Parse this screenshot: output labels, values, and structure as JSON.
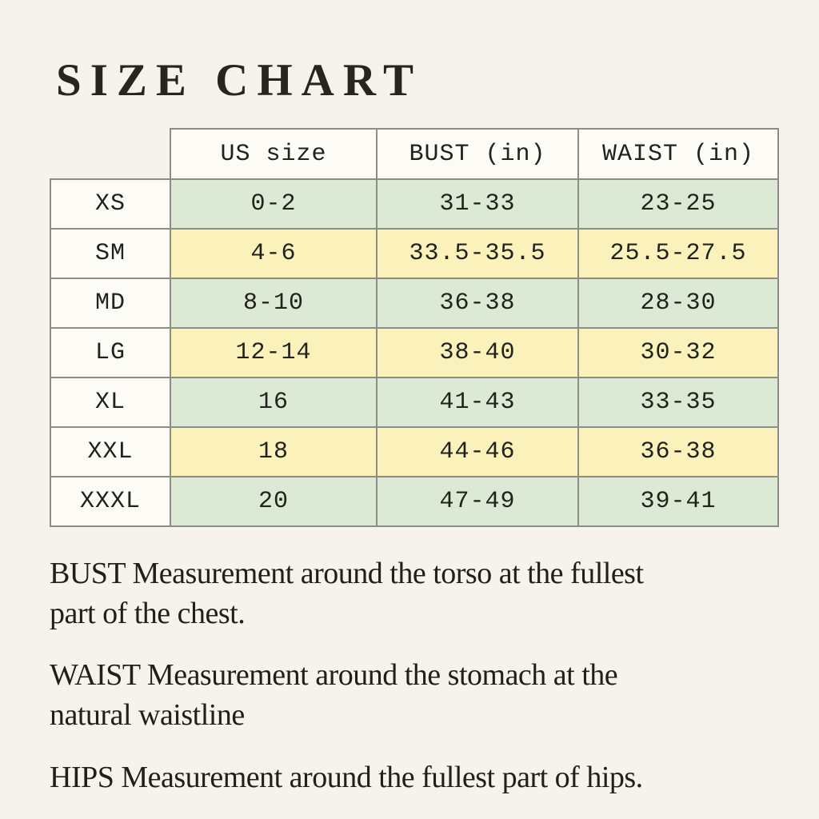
{
  "title": "SIZE CHART",
  "table": {
    "columns": [
      "US size",
      "BUST (in)",
      "WAIST (in)"
    ],
    "rows": [
      {
        "size": "XS",
        "us": "0-2",
        "bust": "31-33",
        "waist": "23-25",
        "tint": "green"
      },
      {
        "size": "SM",
        "us": "4-6",
        "bust": "33.5-35.5",
        "waist": "25.5-27.5",
        "tint": "yellow"
      },
      {
        "size": "MD",
        "us": "8-10",
        "bust": "36-38",
        "waist": "28-30",
        "tint": "green"
      },
      {
        "size": "LG",
        "us": "12-14",
        "bust": "38-40",
        "waist": "30-32",
        "tint": "yellow"
      },
      {
        "size": "XL",
        "us": "16",
        "bust": "41-43",
        "waist": "33-35",
        "tint": "green"
      },
      {
        "size": "XXL",
        "us": "18",
        "bust": "44-46",
        "waist": "36-38",
        "tint": "yellow"
      },
      {
        "size": "XXXL",
        "us": "20",
        "bust": "47-49",
        "waist": "39-41",
        "tint": "green"
      }
    ],
    "colors": {
      "row_green": "#dcead5",
      "row_yellow": "#faf1bb",
      "label_cell": "#fcfbf6",
      "border": "#8e8d85",
      "page_background": "#f5f3ec",
      "text": "#22221d"
    }
  },
  "notes": [
    "BUST Measurement around the torso at the fullest\npart of the chest.",
    "WAIST Measurement around the stomach at the\nnatural waistline",
    "HIPS Measurement around the fullest part of hips."
  ]
}
